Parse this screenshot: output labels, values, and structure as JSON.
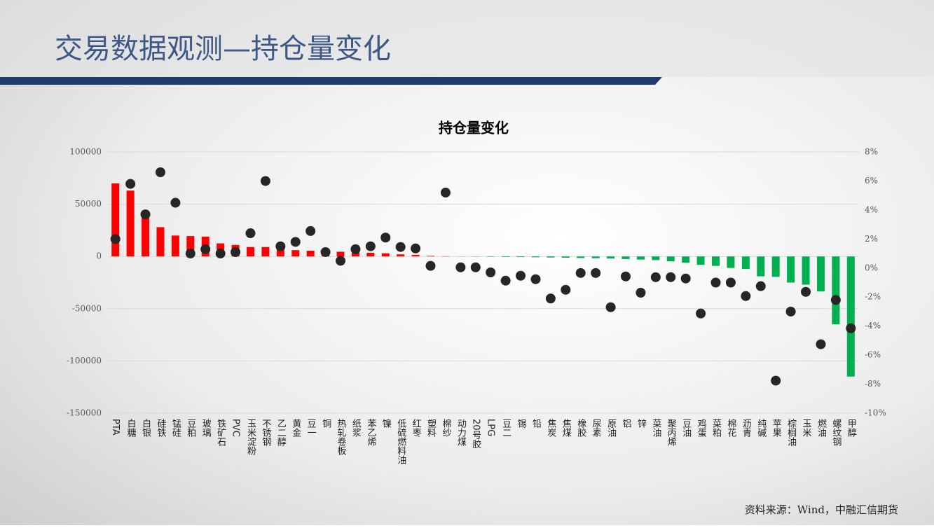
{
  "page_title": "交易数据观测—持仓量变化",
  "source": "资料来源：Wind，中融汇信期货",
  "chart_data": {
    "type": "bar",
    "title": "持仓量变化",
    "categories": [
      "PTA",
      "白糖",
      "白银",
      "硅铁",
      "锰硅",
      "豆粕",
      "玻璃",
      "铁矿石",
      "PVC",
      "玉米淀粉",
      "不锈钢",
      "乙二醇",
      "黄金",
      "豆一",
      "铜",
      "热轧卷板",
      "纸浆",
      "苯乙烯",
      "镍",
      "低硫燃料油",
      "红枣",
      "塑料",
      "棉纱",
      "动力煤",
      "20号胶",
      "LPG",
      "豆二",
      "锡",
      "铅",
      "焦炭",
      "焦煤",
      "橡胶",
      "尿素",
      "原油",
      "铝",
      "锌",
      "菜油",
      "聚丙烯",
      "豆油",
      "鸡蛋",
      "菜粕",
      "棉花",
      "沥青",
      "纯碱",
      "苹果",
      "棕榈油",
      "玉米",
      "燃油",
      "螺纹钢",
      "甲醇"
    ],
    "series": [
      {
        "type": "bar",
        "positive_color": "#ff0000",
        "negative_color": "#00b050",
        "values": [
          70000,
          63000,
          37000,
          28000,
          20000,
          19500,
          19000,
          12500,
          11000,
          9000,
          9000,
          8000,
          6000,
          5500,
          5000,
          4500,
          4000,
          3500,
          3000,
          2000,
          1500,
          500,
          200,
          -100,
          -200,
          -300,
          -500,
          -600,
          -800,
          -1000,
          -1200,
          -1500,
          -1700,
          -2000,
          -2500,
          -3000,
          -3500,
          -4700,
          -6000,
          -8000,
          -9000,
          -11000,
          -12000,
          -19000,
          -19500,
          -25000,
          -27000,
          -33500,
          -65000,
          -115000
        ]
      },
      {
        "type": "scatter",
        "axis": "y2",
        "color": "#262626",
        "values": [
          2.0,
          5.8,
          3.7,
          6.6,
          4.5,
          1.0,
          1.3,
          1.0,
          1.1,
          2.4,
          6.0,
          1.5,
          1.8,
          2.55,
          1.1,
          0.5,
          1.3,
          1.5,
          2.1,
          1.45,
          1.35,
          0.15,
          5.2,
          0.05,
          0.05,
          -0.3,
          -0.87,
          -0.53,
          -0.77,
          -2.1,
          -1.5,
          -0.34,
          -0.34,
          -2.7,
          -0.58,
          -1.7,
          -0.63,
          -0.63,
          -0.72,
          -3.13,
          -1.0,
          -1.0,
          -1.93,
          -1.25,
          -7.76,
          -3.0,
          -1.64,
          -5.25,
          -2.2,
          -4.15
        ]
      }
    ],
    "ylim": [
      -150000,
      100000
    ],
    "yticks": [
      100000,
      50000,
      0,
      -50000,
      -100000,
      -150000
    ],
    "y2lim": [
      -10,
      8
    ],
    "y2ticks": [
      {
        "value": 8,
        "label": "8%"
      },
      {
        "value": 6,
        "label": "6%"
      },
      {
        "value": 4,
        "label": "4%"
      },
      {
        "value": 2,
        "label": "2%"
      },
      {
        "value": 0,
        "label": "0%"
      },
      {
        "value": -2,
        "label": "-2%"
      },
      {
        "value": -4,
        "label": "-4%"
      },
      {
        "value": -6,
        "label": "-6%"
      },
      {
        "value": -8,
        "label": "-8%"
      },
      {
        "value": -10,
        "label": "-10%"
      }
    ],
    "grid": true
  }
}
